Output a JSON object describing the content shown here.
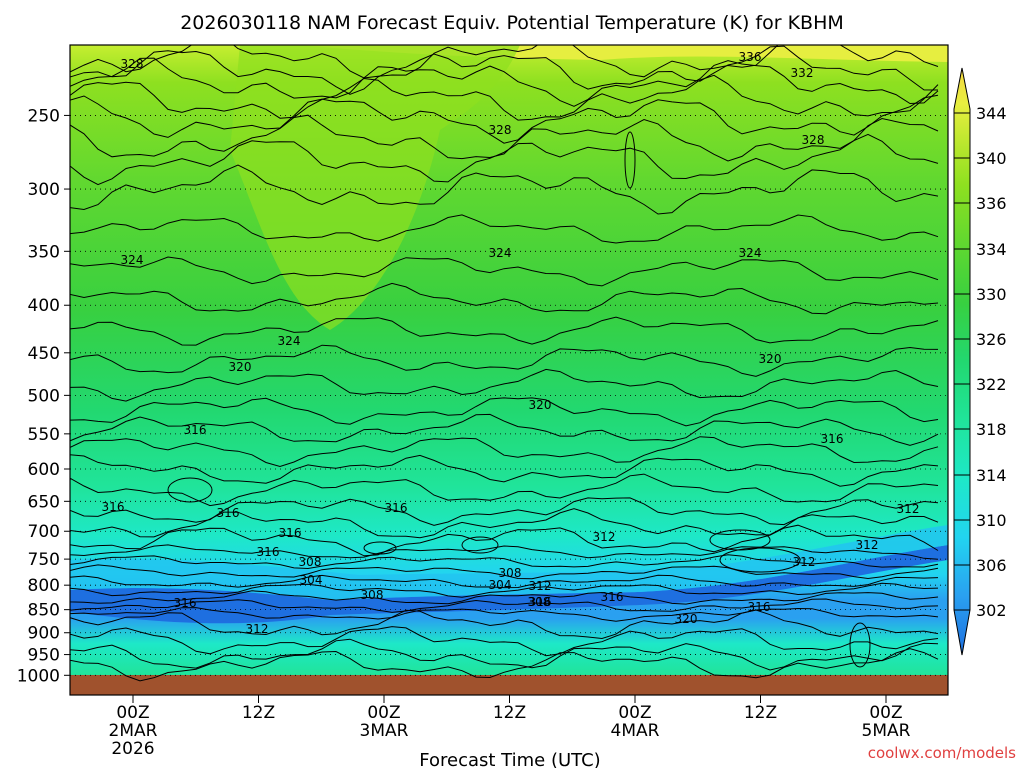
{
  "chart_data": {
    "type": "heatmap",
    "title": "2026030118 NAM Forecast Equiv. Potential Temperature (K) for KBHM",
    "xlabel": "Forecast Time (UTC)",
    "ylabel": "",
    "y_ticks": [
      "250",
      "300",
      "350",
      "400",
      "450",
      "500",
      "550",
      "600",
      "650",
      "700",
      "750",
      "800",
      "850",
      "900",
      "950",
      "1000"
    ],
    "x_ticks": [
      {
        "line1": "00Z",
        "line2": "2MAR",
        "line3": "2026"
      },
      {
        "line1": "12Z",
        "line2": "",
        "line3": ""
      },
      {
        "line1": "00Z",
        "line2": "3MAR",
        "line3": ""
      },
      {
        "line1": "12Z",
        "line2": "",
        "line3": ""
      },
      {
        "line1": "00Z",
        "line2": "4MAR",
        "line3": ""
      },
      {
        "line1": "12Z",
        "line2": "",
        "line3": ""
      },
      {
        "line1": "00Z",
        "line2": "5MAR",
        "line3": ""
      }
    ],
    "colorbar_labels": [
      "302",
      "306",
      "310",
      "314",
      "318",
      "322",
      "326",
      "330",
      "334",
      "336",
      "340",
      "344"
    ],
    "contour_labels": [
      "328",
      "336",
      "332",
      "328",
      "328",
      "324",
      "324",
      "324",
      "324",
      "320",
      "320",
      "320",
      "316",
      "316",
      "316",
      "316",
      "316",
      "312",
      "312",
      "316",
      "316",
      "308",
      "304",
      "304",
      "308",
      "312",
      "308",
      "316",
      "312",
      "316",
      "308",
      "312",
      "320",
      "316",
      "312",
      "316"
    ],
    "grid": "dotted horizontal at pressure levels",
    "ground_color": "#a0522d",
    "colormap": [
      "#1e6fe0",
      "#2aa0f0",
      "#22d4f0",
      "#1ee8c8",
      "#20e49a",
      "#22d870",
      "#38d040",
      "#60d830",
      "#8ee020",
      "#c0e830",
      "#e8ee40",
      "#f6d840"
    ]
  },
  "credit": "coolwx.com/models"
}
